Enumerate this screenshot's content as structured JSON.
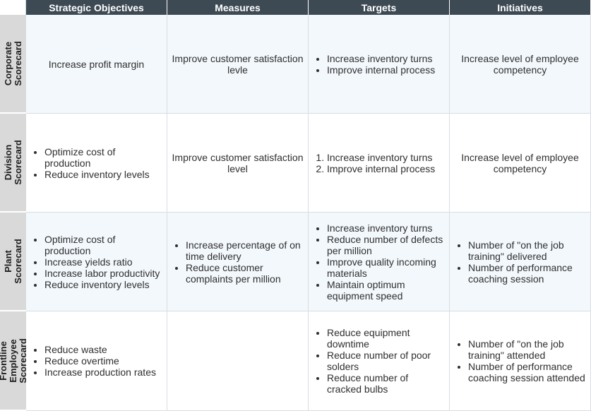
{
  "headers": [
    "Strategic Objectives",
    "Measures",
    "Targets",
    "Initiatives"
  ],
  "rows": [
    {
      "label": "Corporate\nScorecard",
      "objectives": {
        "text": "Increase profit margin"
      },
      "measures": {
        "text": "Improve customer satisfaction levle"
      },
      "targets": {
        "items": [
          "Increase inventory turns",
          "Improve internal process"
        ]
      },
      "initiatives": {
        "text": "Increase level of employee competency"
      }
    },
    {
      "label": "Division\nScorecard",
      "objectives": {
        "items": [
          "Optimize cost of production",
          "Reduce inventory levels"
        ]
      },
      "measures": {
        "text": "Improve customer satisfaction level"
      },
      "targets": {
        "items": [
          "Increase inventory turns",
          "Improve internal process"
        ]
      },
      "initiatives": {
        "text": "Increase level of employee competency"
      }
    },
    {
      "label": "Plant\nScorecard",
      "objectives": {
        "items": [
          "Optimize cost of production",
          "Increase yields ratio",
          "Increase labor productivity",
          "Reduce inventory levels"
        ]
      },
      "measures": {
        "items": [
          "Increase percentage of on time delivery",
          "Reduce customer complaints per million"
        ]
      },
      "targets": {
        "items": [
          "Increase inventory turns",
          "Reduce number of defects per million",
          "Improve quality incoming materials",
          "Maintain optimum equipment speed"
        ]
      },
      "initiatives": {
        "items": [
          "Number of \"on the job training\" delivered",
          "Number of performance coaching session"
        ]
      }
    },
    {
      "label": "Frontline Employee\nScorecard",
      "objectives": {
        "items": [
          "Reduce waste",
          "Reduce overtime",
          "Increase production rates"
        ]
      },
      "measures": {
        "text": ""
      },
      "targets": {
        "items": [
          "Reduce equipment downtime",
          "Reduce number of poor solders",
          "Reduce number of cracked bulbs"
        ]
      },
      "initiatives": {
        "items": [
          "Number of \"on the job training\" attended",
          "Number of performance coaching session attended"
        ]
      }
    }
  ],
  "colors": {
    "header_bg": "#3d4a54",
    "header_text": "#ffffff",
    "row_label_bg": "#d9d9d9",
    "cell_shaded_bg": "#f3f8fc",
    "cell_plain_bg": "#ffffff"
  }
}
